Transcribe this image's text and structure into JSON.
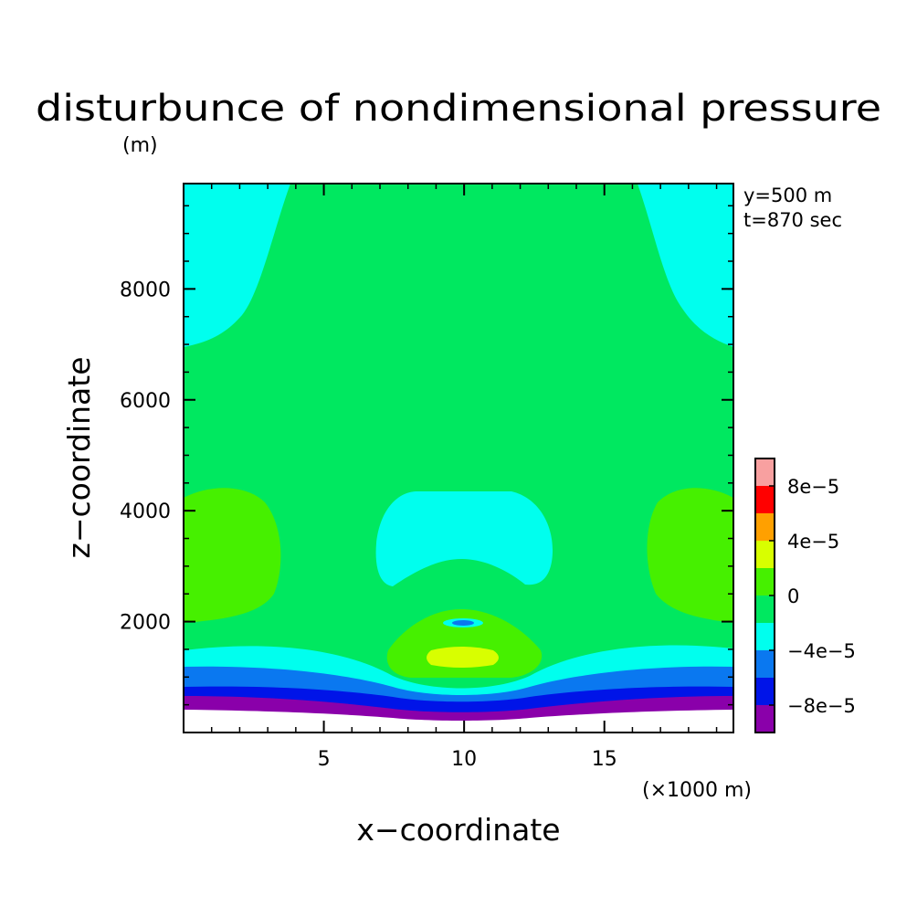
{
  "chart_data": {
    "type": "heatmap",
    "title": "disturbunce of nondimensional pressure",
    "units": "(m)",
    "xlabel": "x−coordinate",
    "ylabel": "z−coordinate",
    "x_unit_label": "(×1000 m)",
    "info_lines": [
      "y=500 m",
      "t=870 sec"
    ],
    "xlim": [
      0,
      19.6
    ],
    "ylim": [
      0,
      9900
    ],
    "xticks": [
      5,
      10,
      15
    ],
    "xtick_labels": [
      "5",
      "10",
      "15"
    ],
    "yticks": [
      2000,
      4000,
      6000,
      8000
    ],
    "ytick_labels": [
      "2000",
      "4000",
      "6000",
      "8000"
    ],
    "grid": false,
    "colorbar": {
      "levels": [
        -0.0001,
        -8e-05,
        -6e-05,
        -4e-05,
        -2e-05,
        0,
        2e-05,
        4e-05,
        6e-05,
        8e-05,
        0.0001
      ],
      "colors": [
        "#8a00aa",
        "#0014e8",
        "#0a78f0",
        "#00ffee",
        "#00e860",
        "#46f000",
        "#d8ff00",
        "#ffa000",
        "#ff0000",
        "#f8a0a0"
      ],
      "tick_labels": [
        "−8e−5",
        "−4e−5",
        "0",
        "4e−5",
        "8e−5"
      ],
      "tick_values": [
        -8e-05,
        -4e-05,
        0,
        4e-05,
        8e-05
      ]
    },
    "regions": [
      {
        "name": "background",
        "value_range": [
          -2e-05,
          0
        ]
      },
      {
        "name": "upper-left",
        "value_range": [
          -4e-05,
          -2e-05
        ]
      },
      {
        "name": "upper-right",
        "value_range": [
          -4e-05,
          -2e-05
        ]
      },
      {
        "name": "mid-left",
        "value_range": [
          0,
          2e-05
        ]
      },
      {
        "name": "mid-right",
        "value_range": [
          0,
          2e-05
        ]
      },
      {
        "name": "center-cap",
        "value_range": [
          -4e-05,
          -2e-05
        ]
      },
      {
        "name": "lower-center",
        "value_range": [
          0,
          2e-05
        ]
      },
      {
        "name": "lower-center-core",
        "value_range": [
          2e-05,
          4e-05
        ]
      },
      {
        "name": "center-spot",
        "value_range": [
          -6e-05,
          -4e-05
        ]
      },
      {
        "name": "bottom-band-1",
        "value_range": [
          -4e-05,
          -2e-05
        ]
      },
      {
        "name": "bottom-band-2",
        "value_range": [
          -6e-05,
          -4e-05
        ]
      },
      {
        "name": "bottom-band-3",
        "value_range": [
          -8e-05,
          -6e-05
        ]
      },
      {
        "name": "bottom-band-4",
        "value_range": [
          -0.0001,
          -8e-05
        ]
      }
    ]
  }
}
